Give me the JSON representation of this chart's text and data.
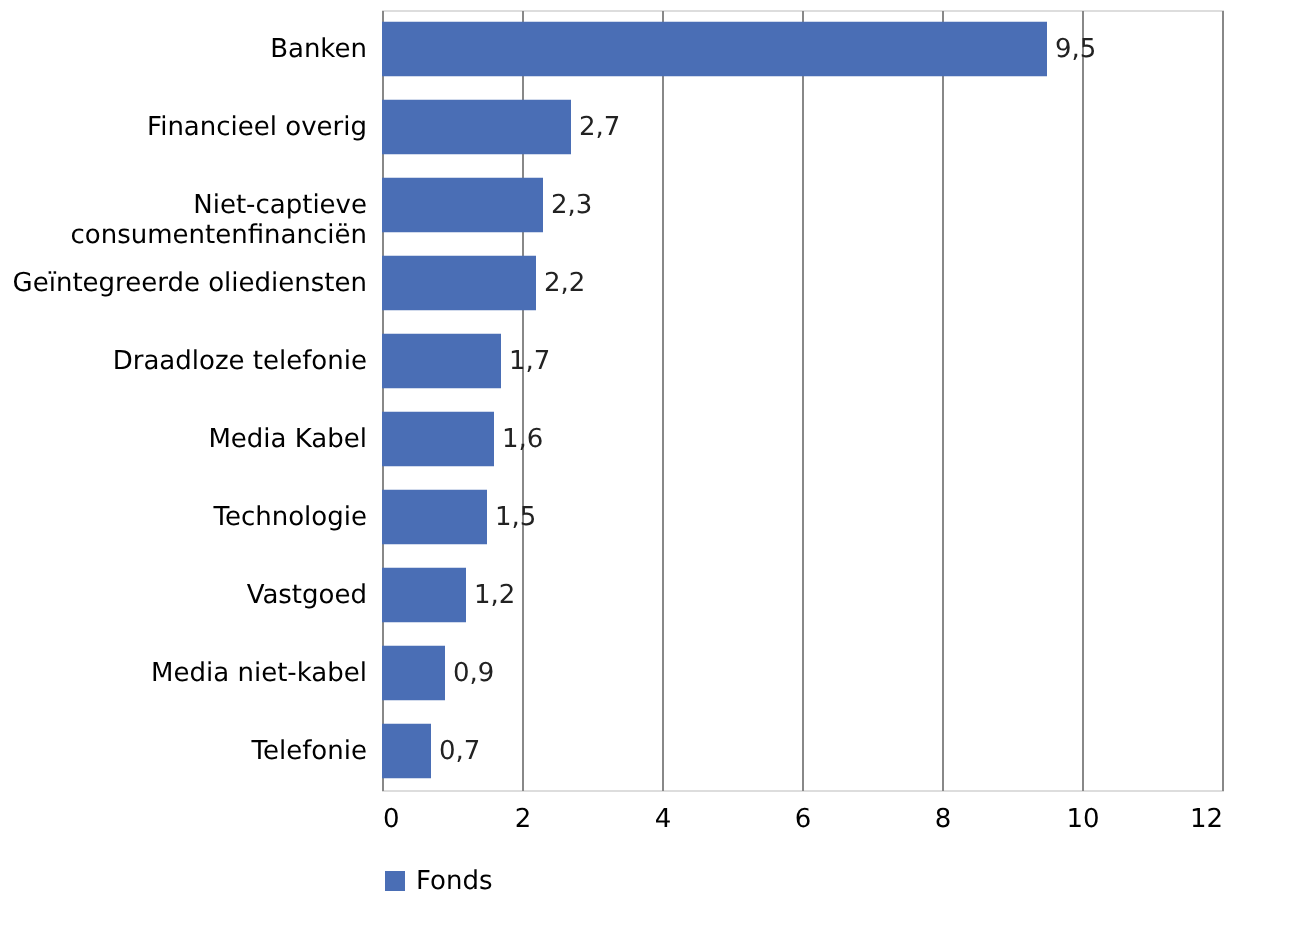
{
  "chart_data": {
    "type": "bar",
    "orientation": "horizontal",
    "categories": [
      "Banken",
      "Financieel overig",
      "Niet-captieve consumentenfinanciën",
      "Geïntegreerde oliediensten",
      "Draadloze telefonie",
      "Media Kabel",
      "Technologie",
      "Vastgoed",
      "Media niet-kabel",
      "Telefonie"
    ],
    "series": [
      {
        "name": "Fonds",
        "color": "#4a6eb5",
        "values": [
          9.5,
          2.7,
          2.3,
          2.2,
          1.7,
          1.6,
          1.5,
          1.2,
          0.9,
          0.7
        ],
        "value_labels": [
          "9,5",
          "2,7",
          "2,3",
          "2,2",
          "1,7",
          "1,6",
          "1,5",
          "1,2",
          "0,9",
          "0,7"
        ]
      }
    ],
    "xlim": [
      0,
      12
    ],
    "xticks": [
      0,
      2,
      4,
      6,
      8,
      10,
      12
    ],
    "grid": "x",
    "legend": "bottom"
  }
}
